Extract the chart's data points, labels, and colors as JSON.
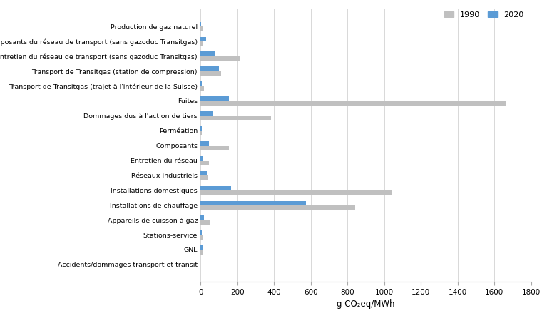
{
  "categories": [
    "Production de gaz naturel",
    "Composants du réseau de transport (sans gazoduc Transitgas)",
    "Entretien du réseau de transport (sans gazoduc Transitgas)",
    "Transport de Transitgas (station de compression)",
    "Transport de Transitgas (trajet à l'intérieur de la Suisse)",
    "Fuites",
    "Dommages dus à l'action de tiers",
    "Perméation",
    "Composants",
    "Entretien du réseau",
    "Réseaux industriels",
    "Installations domestiques",
    "Installations de chauffage",
    "Appareils de cuisson à gaz",
    "Stations-service",
    "GNL",
    "Accidents/dommages transport et transit"
  ],
  "values_1990": [
    10,
    15,
    215,
    110,
    20,
    1660,
    385,
    8,
    155,
    45,
    40,
    1040,
    840,
    50,
    10,
    10,
    0
  ],
  "values_2020": [
    5,
    30,
    80,
    100,
    8,
    155,
    65,
    8,
    45,
    12,
    35,
    165,
    575,
    18,
    8,
    15,
    0
  ],
  "color_1990": "#c0c0c0",
  "color_2020": "#5b9bd5",
  "xlabel": "g CO₂eq/MWh",
  "xlim": [
    0,
    1800
  ],
  "xticks": [
    0,
    200,
    400,
    600,
    800,
    1000,
    1200,
    1400,
    1600,
    1800
  ],
  "legend_labels": [
    "1990",
    "2020"
  ],
  "bar_height": 0.32,
  "figsize": [
    7.6,
    4.4
  ],
  "dpi": 100,
  "label_fontsize": 6.8,
  "tick_fontsize": 7.5
}
